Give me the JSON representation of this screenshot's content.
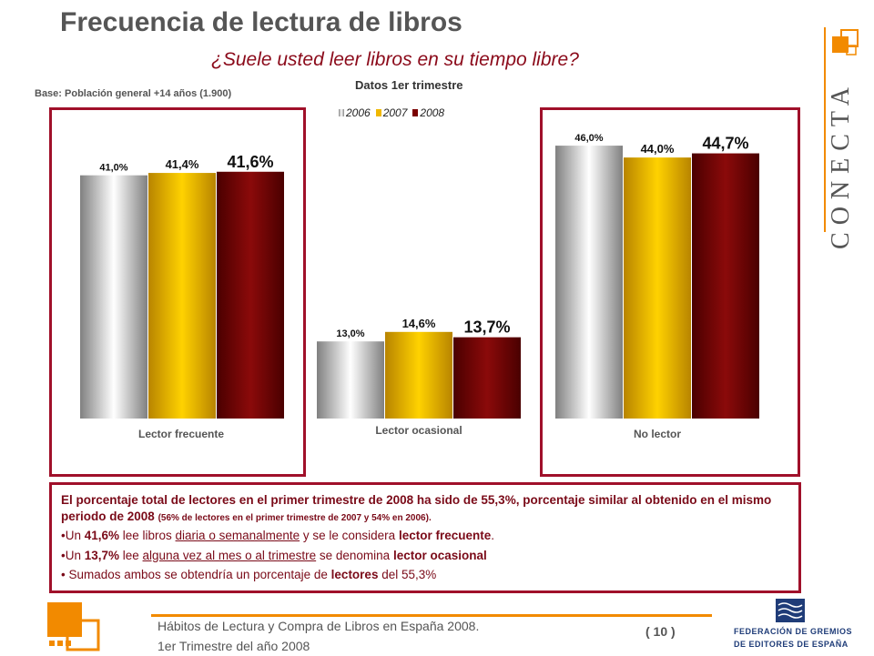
{
  "header": {
    "title": "Frecuencia de lectura de libros",
    "subtitle": "¿Suele usted leer libros en su tiempo libre?",
    "base": "Base: Población general +14 años (1.900)",
    "period": "Datos 1er trimestre"
  },
  "brand": {
    "name": "CONECTA",
    "accent_color": "#f28a00"
  },
  "chart_data": {
    "type": "bar",
    "categories": [
      "Lector frecuente",
      "Lector ocasional",
      "No lector"
    ],
    "series": [
      {
        "name": "2006",
        "values": [
          41.0,
          13.0,
          46.0
        ],
        "labels": [
          "41,0%",
          "13,0%",
          "46,0%"
        ],
        "color": "#c8c8c8"
      },
      {
        "name": "2007",
        "values": [
          41.4,
          14.6,
          44.0
        ],
        "labels": [
          "41,4%",
          "14,6%",
          "44,0%"
        ],
        "color": "#f0b800"
      },
      {
        "name": "2008",
        "values": [
          41.6,
          13.7,
          44.7
        ],
        "labels": [
          "41,6%",
          "13,7%",
          "44,7%"
        ],
        "color": "#7a0000"
      }
    ],
    "legend_position": "top"
  },
  "summary": {
    "intro": "El porcentaje total de lectores en el primer trimestre de 2008 ha sido de 55,3%, porcentaje similar al obtenido en el mismo periodo de 2008",
    "intro_note": "(56% de lectores en el primer trimestre de 2007 y 54% en 2006).",
    "b1_pre": "•Un ",
    "b1_pct": "41,6%",
    "b1_mid": " lee libros ",
    "b1_u": "diaria o semanalmente",
    "b1_post": " y se le considera ",
    "b1_term": "lector frecuente",
    "b1_end": ".",
    "b2_pre": "•Un ",
    "b2_pct": "13,7%",
    "b2_mid": " lee ",
    "b2_u": "alguna vez al mes o al trimestre",
    "b2_post": " se denomina ",
    "b2_term": "lector ocasional",
    "b3_pre": "• Sumados ambos se obtendría un porcentaje de ",
    "b3_term": "lectores",
    "b3_post": " del 55,3%"
  },
  "footer": {
    "line1": "Hábitos de Lectura y Compra de Libros en España 2008.",
    "line2": "1er Trimestre del año 2008",
    "page": "( 10 )",
    "fge_line1": "FEDERACIÓN DE GREMIOS",
    "fge_line2": "DE EDITORES DE ESPAÑA"
  }
}
